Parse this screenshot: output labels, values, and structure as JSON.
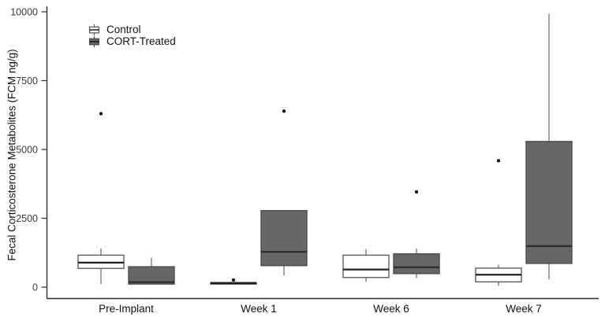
{
  "figure": {
    "background": "#ffffff"
  },
  "chart_data": {
    "type": "boxplot",
    "title": "",
    "xlabel": "",
    "ylabel": "Fecal Corticosterone Metabolites (FCM ng/g)",
    "categories": [
      "Pre-Implant",
      "Week 1",
      "Week 6",
      "Week 7"
    ],
    "yticks": [
      0,
      2500,
      5000,
      7500,
      10000
    ],
    "ylim": [
      0,
      10000
    ],
    "grid": false,
    "legend_position": "top-left",
    "legend": [
      {
        "label": "Control",
        "fill": "#ffffff"
      },
      {
        "label": "CORT-Treated",
        "fill": "#666666"
      }
    ],
    "series": [
      {
        "name": "Control",
        "fill": "#ffffff",
        "stroke": "#5e5e5e",
        "median_color": "#1f1f1f",
        "boxes": [
          {
            "category": "Pre-Implant",
            "min": 110,
            "q1": 680,
            "median": 890,
            "q3": 1160,
            "max": 1410,
            "outliers": [
              6300
            ]
          },
          {
            "category": "Week 1",
            "min": 110,
            "q1": 110,
            "median": 140,
            "q3": 170,
            "max": 170,
            "outliers": [
              260
            ]
          },
          {
            "category": "Week 6",
            "min": 190,
            "q1": 350,
            "median": 640,
            "q3": 1160,
            "max": 1380,
            "outliers": []
          },
          {
            "category": "Week 7",
            "min": 50,
            "q1": 190,
            "median": 450,
            "q3": 690,
            "max": 810,
            "outliers": [
              4590
            ]
          }
        ]
      },
      {
        "name": "CORT-Treated",
        "fill": "#666666",
        "stroke": "#4d4d4d",
        "median_color": "#2b2b2b",
        "boxes": [
          {
            "category": "Pre-Implant",
            "min": 110,
            "q1": 110,
            "median": 180,
            "q3": 740,
            "max": 1070,
            "outliers": []
          },
          {
            "category": "Week 1",
            "min": 430,
            "q1": 780,
            "median": 1280,
            "q3": 2780,
            "max": 2780,
            "outliers": [
              6390
            ]
          },
          {
            "category": "Week 6",
            "min": 330,
            "q1": 490,
            "median": 720,
            "q3": 1210,
            "max": 1400,
            "outliers": [
              3460
            ]
          },
          {
            "category": "Week 7",
            "min": 280,
            "q1": 860,
            "median": 1490,
            "q3": 5290,
            "max": 9930,
            "outliers": []
          }
        ]
      }
    ],
    "colors": {
      "axis": "#2e2e2e",
      "whisker": "#7d7d7d",
      "outlier": "#1a1a1a"
    }
  }
}
